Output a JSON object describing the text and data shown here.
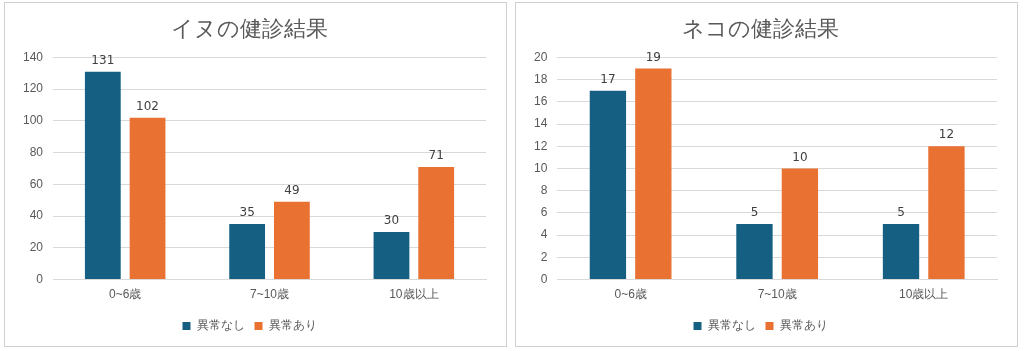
{
  "chart_data": [
    {
      "type": "bar",
      "title": "イヌの健診結果",
      "categories": [
        "0~6歳",
        "7~10歳",
        "10歳以上"
      ],
      "series": [
        {
          "name": "異常なし",
          "color": "#156082",
          "values": [
            131,
            35,
            30
          ]
        },
        {
          "name": "異常あり",
          "color": "#e97132",
          "values": [
            102,
            49,
            71
          ]
        }
      ],
      "ylim": [
        0,
        140
      ],
      "yticks": [
        0,
        20,
        40,
        60,
        80,
        100,
        120,
        140
      ],
      "grid": "y",
      "legend": "bottom",
      "data_labels": true
    },
    {
      "type": "bar",
      "title": "ネコの健診結果",
      "categories": [
        "0~6歳",
        "7~10歳",
        "10歳以上"
      ],
      "series": [
        {
          "name": "異常なし",
          "color": "#156082",
          "values": [
            17,
            5,
            5
          ]
        },
        {
          "name": "異常あり",
          "color": "#e97132",
          "values": [
            19,
            10,
            12
          ]
        }
      ],
      "ylim": [
        0,
        20
      ],
      "yticks": [
        0,
        2,
        4,
        6,
        8,
        10,
        12,
        14,
        16,
        18,
        20
      ],
      "grid": "y",
      "legend": "bottom",
      "data_labels": true
    }
  ]
}
